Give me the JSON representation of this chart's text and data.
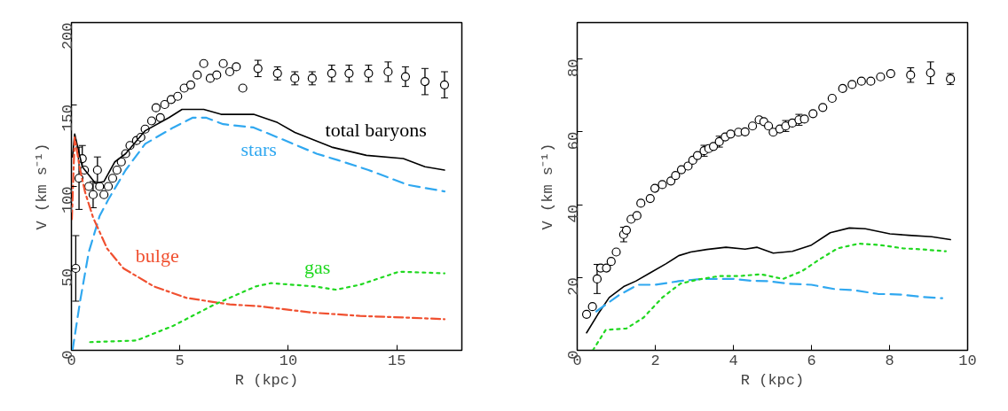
{
  "chart_data": [
    {
      "type": "line",
      "xlabel": "R (kpc)",
      "ylabel": "V (km s⁻¹)",
      "xlim": [
        0,
        18
      ],
      "ylim": [
        0,
        200
      ],
      "xticks": [
        0,
        5,
        10,
        15
      ],
      "yticks": [
        0,
        50,
        100,
        150,
        200
      ],
      "grid": false,
      "series": [
        {
          "type": "scatter",
          "color": "#000000",
          "marker": "circle",
          "x": [
            0.2,
            0.35,
            0.5,
            0.6,
            0.8,
            1.0,
            1.2,
            1.3,
            1.5,
            1.7,
            1.9,
            2.1,
            2.3,
            2.5,
            2.7,
            3.0,
            3.2,
            3.4,
            3.7,
            3.9,
            4.1,
            4.3,
            4.6,
            4.9,
            5.2,
            5.5,
            5.8,
            6.1,
            6.4,
            6.7,
            7.0,
            7.3,
            7.6,
            7.9,
            8.6,
            9.5,
            10.3,
            11.1,
            12.0,
            12.8,
            13.7,
            14.6,
            15.4,
            16.3,
            17.2
          ],
          "values": [
            50,
            105,
            117,
            110,
            100,
            95,
            110,
            100,
            95,
            100,
            105,
            110,
            115,
            120,
            125,
            128,
            130,
            135,
            140,
            148,
            142,
            150,
            153,
            155,
            160,
            162,
            168,
            175,
            166,
            168,
            175,
            170,
            173,
            160,
            172,
            169,
            166,
            166,
            169,
            169,
            169,
            170,
            167,
            164,
            162
          ],
          "errors": [
            20,
            19,
            8,
            null,
            null,
            8,
            8,
            null,
            null,
            null,
            null,
            null,
            null,
            null,
            null,
            null,
            null,
            null,
            null,
            null,
            null,
            null,
            null,
            null,
            null,
            null,
            null,
            null,
            null,
            null,
            null,
            null,
            null,
            null,
            5,
            4,
            4,
            4,
            5,
            5,
            5,
            6,
            6,
            8,
            8
          ]
        },
        {
          "name": "total baryons",
          "color": "#000000",
          "line_style": "solid",
          "x": [
            0.05,
            0.15,
            0.5,
            1.1,
            1.5,
            2.0,
            2.5,
            3.4,
            4.5,
            5.1,
            6.1,
            6.9,
            8.4,
            9.5,
            10.3,
            12.0,
            13.6,
            15.3,
            16.3,
            17.2
          ],
          "values": [
            118,
            132,
            112,
            102,
            103,
            115,
            120,
            134,
            142,
            147,
            147,
            144,
            144,
            139,
            133,
            124,
            119,
            117,
            112,
            110
          ]
        },
        {
          "name": "stars",
          "color": "#30a8f0",
          "line_style": "dashed",
          "x": [
            0.05,
            0.4,
            0.8,
            1.3,
            1.7,
            2.5,
            3.4,
            4.7,
            5.6,
            6.2,
            7.0,
            8.4,
            9.5,
            11.3,
            12.3,
            13.7,
            15.5,
            17.2
          ],
          "values": [
            0,
            30,
            60,
            82,
            92,
            110,
            126,
            136,
            142,
            142,
            138,
            136,
            130,
            120,
            116,
            110,
            101,
            97
          ]
        },
        {
          "name": "bulge",
          "color": "#f05030",
          "line_style": "dashdot",
          "x": [
            0.02,
            0.15,
            0.4,
            0.64,
            1.0,
            1.65,
            2.4,
            3.8,
            5.3,
            7.3,
            8.6,
            11.1,
            13.3,
            15.4,
            17.2
          ],
          "values": [
            80,
            130,
            110,
            96,
            81,
            62,
            50,
            39,
            32,
            28,
            27,
            23,
            21,
            20,
            19
          ]
        },
        {
          "name": "gas",
          "color": "#20d820",
          "line_style": "dotted",
          "x": [
            0.86,
            3.0,
            4.7,
            6.6,
            8.5,
            9.2,
            11.2,
            12.2,
            13.3,
            15.1,
            17.2
          ],
          "values": [
            5,
            6,
            15,
            28,
            39,
            41,
            39,
            37,
            40,
            48,
            47
          ]
        }
      ]
    },
    {
      "type": "line",
      "xlabel": "R (kpc)",
      "ylabel": "V (km s⁻¹)",
      "xlim": [
        0,
        10
      ],
      "ylim": [
        0,
        90
      ],
      "xticks": [
        0,
        2,
        4,
        6,
        8,
        10
      ],
      "yticks": [
        0,
        20,
        40,
        60,
        80
      ],
      "grid": false,
      "series": [
        {
          "type": "scatter",
          "color": "#000000",
          "marker": "circle",
          "x": [
            0.24,
            0.39,
            0.51,
            0.6,
            0.75,
            0.87,
            1.0,
            1.19,
            1.26,
            1.38,
            1.53,
            1.63,
            1.87,
            1.99,
            2.18,
            2.4,
            2.52,
            2.67,
            2.84,
            2.96,
            3.08,
            3.25,
            3.37,
            3.49,
            3.64,
            3.79,
            3.93,
            4.13,
            4.3,
            4.49,
            4.66,
            4.78,
            4.9,
            5.02,
            5.19,
            5.34,
            5.51,
            5.68,
            5.82,
            6.04,
            6.29,
            6.53,
            6.8,
            7.04,
            7.28,
            7.52,
            7.77,
            8.03,
            8.54,
            9.05,
            9.56
          ],
          "values": [
            9.9,
            12,
            19.6,
            22.6,
            22.6,
            24.4,
            27,
            31.8,
            33,
            36,
            37,
            40.4,
            41.7,
            44.5,
            45.5,
            46.5,
            48,
            49.6,
            50.6,
            52.2,
            53.5,
            54.8,
            55.4,
            56,
            57.3,
            58.6,
            59.4,
            59.9,
            60,
            61.6,
            63.3,
            62.8,
            61.6,
            59.9,
            60.8,
            61.6,
            62.4,
            63.3,
            63.5,
            65,
            66.7,
            69.2,
            71.9,
            73,
            73.9,
            73.9,
            75.1,
            76,
            75.6,
            76.2,
            74.5
          ],
          "errors": [
            null,
            null,
            4,
            null,
            null,
            null,
            null,
            2,
            null,
            null,
            null,
            null,
            null,
            null,
            null,
            null,
            null,
            null,
            null,
            null,
            null,
            1.5,
            null,
            null,
            1.5,
            null,
            null,
            null,
            null,
            null,
            null,
            null,
            null,
            null,
            null,
            1.5,
            null,
            1.5,
            null,
            null,
            null,
            null,
            null,
            null,
            null,
            null,
            null,
            null,
            2,
            3,
            1.5
          ]
        },
        {
          "color": "#000000",
          "line_style": "solid",
          "x": [
            0.24,
            0.53,
            0.82,
            1.19,
            1.5,
            1.87,
            2.28,
            2.6,
            2.91,
            3.32,
            3.81,
            4.3,
            4.61,
            5.02,
            5.51,
            6.0,
            6.48,
            6.97,
            7.38,
            8.01,
            8.49,
            9.08,
            9.56
          ],
          "values": [
            4.8,
            9.9,
            14.5,
            17.5,
            19,
            21.3,
            23.8,
            26,
            27,
            27.7,
            28.3,
            27.8,
            28.3,
            26.7,
            27.2,
            28.9,
            32.3,
            33.6,
            33.4,
            32,
            31.6,
            31.2,
            30.4
          ]
        },
        {
          "color": "#30a8f0",
          "line_style": "dashed",
          "x": [
            0.49,
            1.05,
            1.55,
            2.0,
            2.6,
            3.2,
            4.0,
            4.47,
            4.9,
            5.4,
            6.0,
            6.6,
            7.1,
            7.7,
            8.3,
            8.8,
            9.35
          ],
          "values": [
            10.7,
            15,
            18,
            18,
            19,
            19.6,
            19.6,
            19.1,
            19,
            18.3,
            18,
            16.8,
            16.5,
            15.5,
            15.3,
            14.7,
            14.3
          ]
        },
        {
          "color": "#20d820",
          "line_style": "dotted",
          "x": [
            0.4,
            0.73,
            1.26,
            1.7,
            2.18,
            2.64,
            3.08,
            3.64,
            4.17,
            4.7,
            5.27,
            5.75,
            6.24,
            6.67,
            7.21,
            7.77,
            8.35,
            8.86,
            9.44
          ],
          "values": [
            0,
            5.6,
            6,
            9,
            14.5,
            18.3,
            19.4,
            20.4,
            20.4,
            20.9,
            19.6,
            21.7,
            25.2,
            28,
            29.3,
            28.9,
            28,
            27.7,
            27.2
          ]
        }
      ]
    }
  ]
}
